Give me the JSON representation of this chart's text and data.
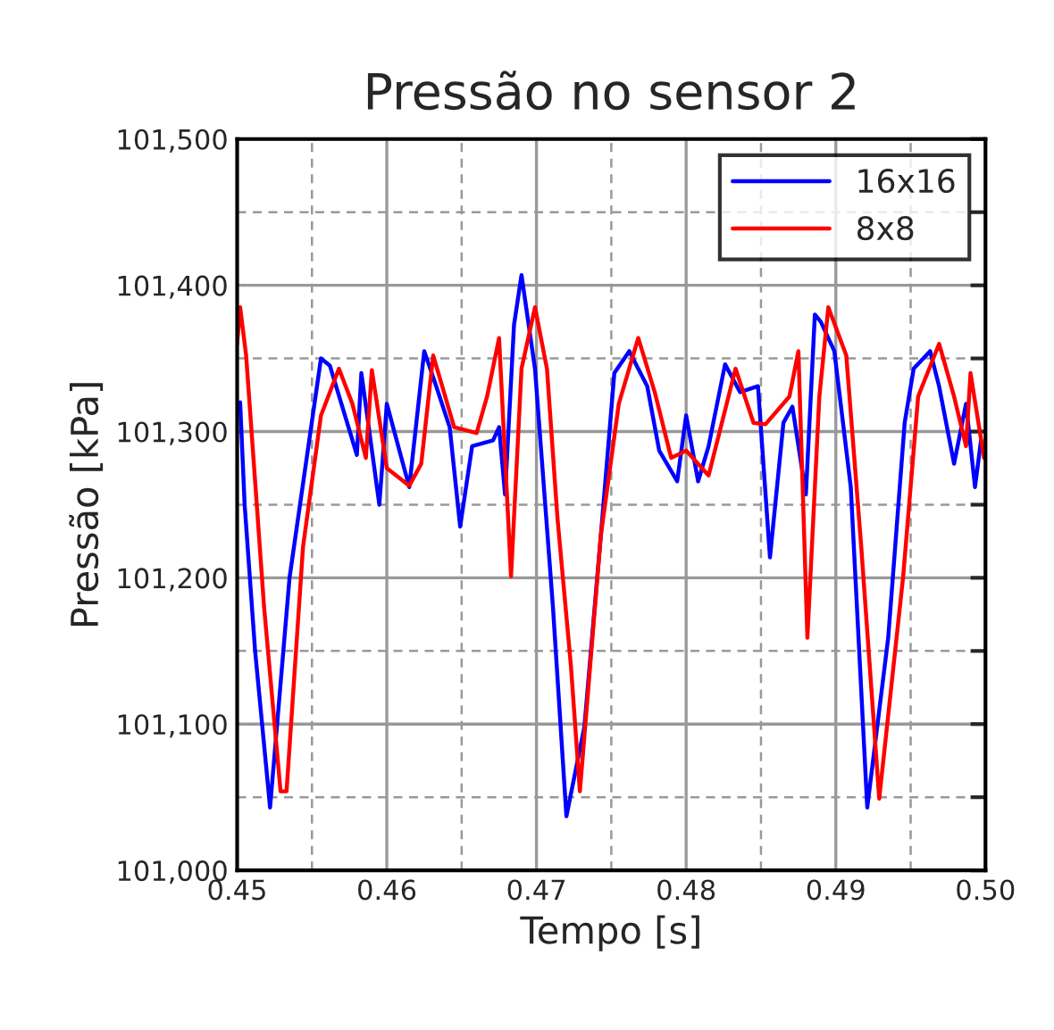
{
  "chart_data": {
    "type": "line",
    "title": "Pressão no sensor 2",
    "xlabel": "Tempo [s]",
    "ylabel": "Pressão [kPa]",
    "xlim": [
      0.45,
      0.5
    ],
    "ylim": [
      101000,
      101500
    ],
    "xticks": [
      0.45,
      {
        "value": 0.455,
        "label": null
      },
      0.46,
      {
        "value": 0.465,
        "label": null
      },
      0.47,
      {
        "value": 0.475,
        "label": null
      },
      0.48,
      {
        "value": 0.485,
        "label": null
      },
      0.49,
      {
        "value": 0.495,
        "label": null
      },
      {
        "value": 0.5,
        "label": "0.50"
      }
    ],
    "yticks": [
      {
        "value": 101000,
        "label": "101,000"
      },
      {
        "value": 101050,
        "label": null
      },
      {
        "value": 101100,
        "label": "101,100"
      },
      {
        "value": 101150,
        "label": null
      },
      {
        "value": 101200,
        "label": "101,200"
      },
      {
        "value": 101250,
        "label": null
      },
      {
        "value": 101300,
        "label": "101,300"
      },
      {
        "value": 101350,
        "label": null
      },
      {
        "value": 101400,
        "label": "101,400"
      },
      {
        "value": 101450,
        "label": null
      },
      {
        "value": 101500,
        "label": "101,500"
      }
    ],
    "grid": true,
    "legend": "top right",
    "line_style": "solid",
    "marker": "none",
    "series": [
      {
        "name": "16x16",
        "color": "#0000ff",
        "x": [
          0.4502,
          0.4505,
          0.4512,
          0.4522,
          0.4535,
          0.4556,
          0.4562,
          0.458,
          0.4583,
          0.4595,
          0.46,
          0.4615,
          0.4625,
          0.4633,
          0.4642,
          0.4649,
          0.4657,
          0.4671,
          0.4675,
          0.4679,
          0.4685,
          0.469,
          0.4699,
          0.4711,
          0.472,
          0.4732,
          0.4744,
          0.4752,
          0.4762,
          0.4774,
          0.4782,
          0.4794,
          0.48,
          0.4808,
          0.4815,
          0.4826,
          0.4836,
          0.4848,
          0.4856,
          0.4865,
          0.4871,
          0.488,
          0.4886,
          0.489,
          0.4899,
          0.491,
          0.4921,
          0.4935,
          0.4946,
          0.4952,
          0.4963,
          0.4969,
          0.4979,
          0.4987,
          0.4993,
          0.4997
        ],
        "values": [
          101320,
          101250,
          101150,
          101043,
          101200,
          101350,
          101345,
          101284,
          101340,
          101250,
          101319,
          101262,
          101355,
          101331,
          101303,
          101235,
          101290,
          101294,
          101303,
          101257,
          101373,
          101407,
          101343,
          101180,
          101037,
          101098,
          101241,
          101340,
          101355,
          101331,
          101287,
          101266,
          101311,
          101266,
          101290,
          101346,
          101327,
          101331,
          101214,
          101306,
          101317,
          101257,
          101380,
          101375,
          101355,
          101262,
          101043,
          101159,
          101306,
          101343,
          101355,
          101331,
          101278,
          101319,
          101262,
          101294
        ]
      },
      {
        "name": "8x8",
        "color": "#ff0000",
        "x": [
          0.45,
          0.4502,
          0.4506,
          0.4518,
          0.4529,
          0.4533,
          0.4544,
          0.4556,
          0.4568,
          0.4577,
          0.4586,
          0.459,
          0.46,
          0.4615,
          0.4623,
          0.4631,
          0.4639,
          0.4645,
          0.466,
          0.4667,
          0.4675,
          0.4683,
          0.469,
          0.4699,
          0.4707,
          0.4714,
          0.4723,
          0.4729,
          0.4743,
          0.4755,
          0.4768,
          0.4779,
          0.479,
          0.48,
          0.4815,
          0.4833,
          0.4845,
          0.4853,
          0.4869,
          0.4875,
          0.4881,
          0.4889,
          0.4895,
          0.4907,
          0.4917,
          0.4929,
          0.4945,
          0.4955,
          0.4969,
          0.4979,
          0.4987,
          0.499,
          0.4999
        ],
        "values": [
          101360,
          101385,
          101352,
          101180,
          101054,
          101054,
          101221,
          101311,
          101343,
          101319,
          101282,
          101342,
          101275,
          101263,
          101278,
          101352,
          101324,
          101303,
          101299,
          101324,
          101364,
          101201,
          101343,
          101385,
          101343,
          101241,
          101140,
          101054,
          101229,
          101319,
          101364,
          101327,
          101282,
          101287,
          101270,
          101343,
          101306,
          101305,
          101324,
          101355,
          101159,
          101324,
          101385,
          101352,
          101221,
          101049,
          101201,
          101324,
          101360,
          101324,
          101290,
          101340,
          101282
        ]
      }
    ]
  }
}
